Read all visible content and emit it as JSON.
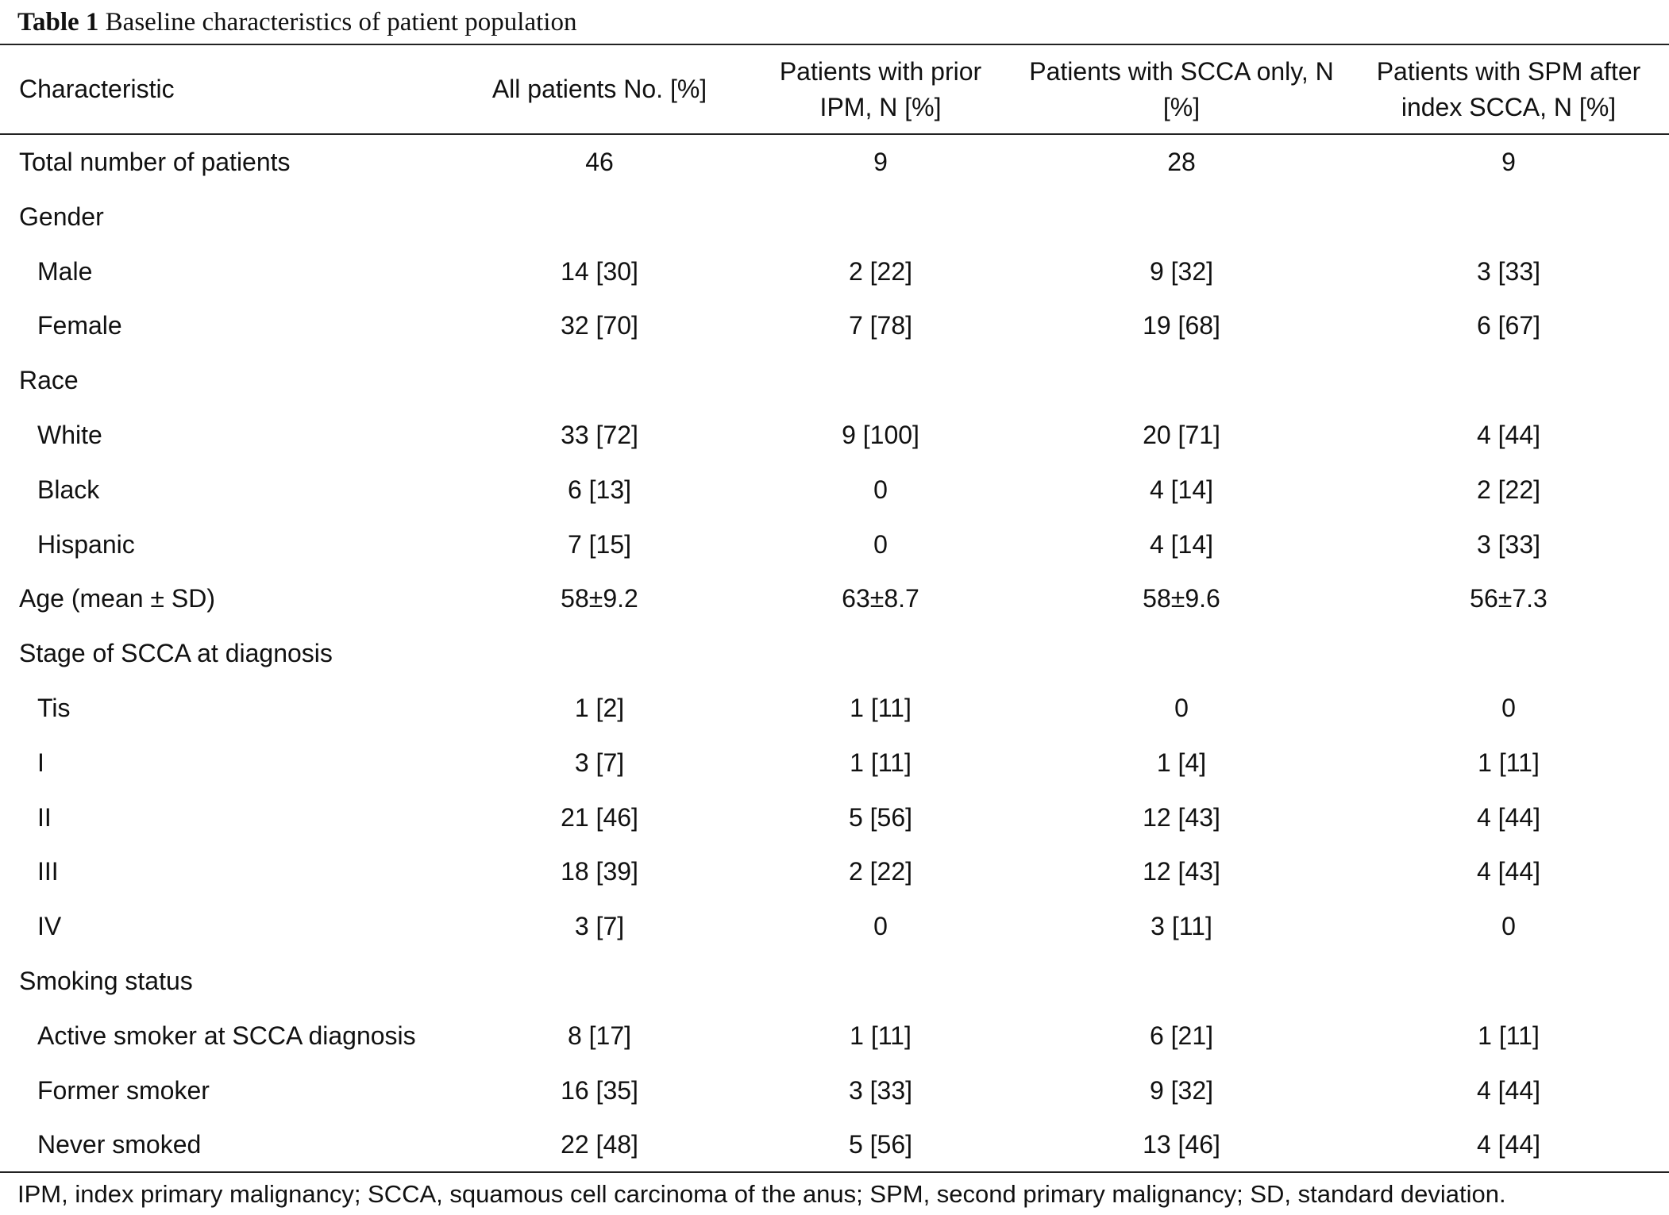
{
  "caption": {
    "label": "Table 1",
    "text": "Baseline characteristics of patient population"
  },
  "headers": [
    "Characteristic",
    "All patients No. [%]",
    "Patients with prior IPM, N [%]",
    "Patients with SCCA only, N [%]",
    "Patients with SPM after index SCCA, N [%]"
  ],
  "rows": [
    {
      "label": "Total number of patients",
      "sub": false,
      "values": [
        "46",
        "9",
        "28",
        "9"
      ]
    },
    {
      "label": "Gender",
      "sub": false,
      "values": [
        "",
        "",
        "",
        ""
      ]
    },
    {
      "label": "Male",
      "sub": true,
      "values": [
        "14 [30]",
        "2 [22]",
        "9 [32]",
        "3 [33]"
      ]
    },
    {
      "label": "Female",
      "sub": true,
      "values": [
        "32 [70]",
        "7 [78]",
        "19 [68]",
        "6 [67]"
      ]
    },
    {
      "label": "Race",
      "sub": false,
      "values": [
        "",
        "",
        "",
        ""
      ]
    },
    {
      "label": "White",
      "sub": true,
      "values": [
        "33 [72]",
        "9 [100]",
        "20 [71]",
        "4 [44]"
      ]
    },
    {
      "label": "Black",
      "sub": true,
      "values": [
        "6 [13]",
        "0",
        "4 [14]",
        "2 [22]"
      ]
    },
    {
      "label": "Hispanic",
      "sub": true,
      "values": [
        "7 [15]",
        "0",
        "4 [14]",
        "3 [33]"
      ]
    },
    {
      "label": "Age (mean ± SD)",
      "sub": false,
      "values": [
        "58±9.2",
        "63±8.7",
        "58±9.6",
        "56±7.3"
      ]
    },
    {
      "label": "Stage of SCCA at diagnosis",
      "sub": false,
      "values": [
        "",
        "",
        "",
        ""
      ]
    },
    {
      "label": "Tis",
      "sub": true,
      "values": [
        "1 [2]",
        "1 [11]",
        "0",
        "0"
      ]
    },
    {
      "label": "I",
      "sub": true,
      "values": [
        "3 [7]",
        "1 [11]",
        "1 [4]",
        "1 [11]"
      ]
    },
    {
      "label": "II",
      "sub": true,
      "values": [
        "21 [46]",
        "5 [56]",
        "12 [43]",
        "4 [44]"
      ]
    },
    {
      "label": "III",
      "sub": true,
      "values": [
        "18 [39]",
        "2 [22]",
        "12 [43]",
        "4 [44]"
      ]
    },
    {
      "label": "IV",
      "sub": true,
      "values": [
        "3 [7]",
        "0",
        "3 [11]",
        "0"
      ]
    },
    {
      "label": "Smoking status",
      "sub": false,
      "values": [
        "",
        "",
        "",
        ""
      ]
    },
    {
      "label": "Active smoker at SCCA diagnosis",
      "sub": true,
      "values": [
        "8 [17]",
        "1 [11]",
        "6 [21]",
        "1 [11]"
      ]
    },
    {
      "label": "Former smoker",
      "sub": true,
      "values": [
        "16 [35]",
        "3 [33]",
        "9 [32]",
        "4 [44]"
      ]
    },
    {
      "label": "Never smoked",
      "sub": true,
      "values": [
        "22 [48]",
        "5 [56]",
        "13 [46]",
        "4 [44]"
      ]
    }
  ],
  "footnote": "IPM, index primary malignancy; SCCA, squamous cell carcinoma of the anus; SPM, second primary malignancy; SD, standard deviation."
}
